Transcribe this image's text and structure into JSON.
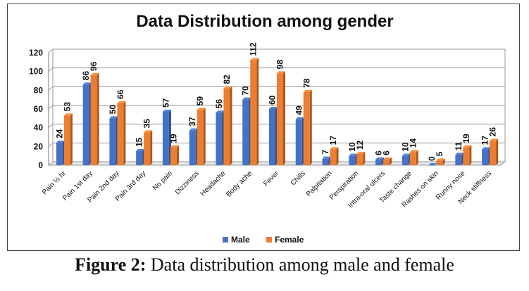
{
  "chart_data": {
    "type": "bar",
    "title": "Data Distribution among gender",
    "xlabel": "",
    "ylabel": "",
    "ylim": [
      0,
      120
    ],
    "yticks": [
      0,
      20,
      40,
      60,
      80,
      100,
      120
    ],
    "grid": true,
    "legend": "bottom",
    "categories": [
      "Pain ½ hr",
      "Pain 1st day",
      "Pain 2nd day",
      "Pain 3rd day",
      "No pain",
      "Dizziness",
      "Headache",
      "Body ache",
      "Fever",
      "Chills",
      "Palpitation",
      "Perspiration",
      "Intra-oral ulcers",
      "Taste change",
      "Rashes on skin",
      "Runny nose",
      "Neck stiffness"
    ],
    "series": [
      {
        "name": "Male",
        "color": "#4472C4",
        "values": [
          24,
          86,
          50,
          15,
          57,
          37,
          56,
          70,
          60,
          49,
          7,
          10,
          6,
          10,
          0,
          11,
          17
        ]
      },
      {
        "name": "Female",
        "color": "#ED7D31",
        "values": [
          53,
          96,
          66,
          35,
          19,
          59,
          82,
          112,
          98,
          78,
          17,
          12,
          6,
          14,
          5,
          19,
          26
        ]
      }
    ]
  },
  "caption": {
    "label": "Figure 2:",
    "text": " Data distribution among male and female"
  }
}
